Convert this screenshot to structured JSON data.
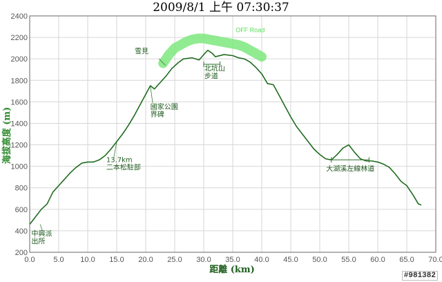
{
  "watermark": "#981382",
  "chart_data": {
    "type": "line",
    "title": "2009/8/1 上午 07:30:37",
    "xlabel": "距離 (km)",
    "ylabel": "海拔高度 (m)",
    "xlim": [
      0,
      70
    ],
    "ylim": [
      200,
      2400
    ],
    "xticks": [
      "0.0",
      "5.0",
      "10.0",
      "15.0",
      "20.0",
      "25.0",
      "30.0",
      "35.0",
      "40.0",
      "45.0",
      "50.0",
      "55.0",
      "60.0",
      "65.0",
      "70.0"
    ],
    "yticks": [
      "200",
      "400",
      "600",
      "800",
      "1000",
      "1200",
      "1400",
      "1600",
      "1800",
      "2000",
      "2200",
      "2400"
    ],
    "grid": true,
    "line_color": "#1e6b1e",
    "series": [
      {
        "points": [
          [
            0,
            460
          ],
          [
            1,
            530
          ],
          [
            2,
            600
          ],
          [
            3,
            650
          ],
          [
            4,
            760
          ],
          [
            5,
            820
          ],
          [
            6,
            880
          ],
          [
            7,
            940
          ],
          [
            8,
            990
          ],
          [
            9,
            1030
          ],
          [
            10,
            1040
          ],
          [
            11,
            1040
          ],
          [
            12,
            1060
          ],
          [
            13,
            1100
          ],
          [
            14,
            1160
          ],
          [
            15,
            1230
          ],
          [
            16,
            1300
          ],
          [
            17,
            1380
          ],
          [
            18,
            1470
          ],
          [
            19,
            1570
          ],
          [
            20,
            1670
          ],
          [
            20.8,
            1750
          ],
          [
            21.5,
            1720
          ],
          [
            22.5,
            1780
          ],
          [
            23.5,
            1840
          ],
          [
            24.5,
            1910
          ],
          [
            25.5,
            1960
          ],
          [
            26.5,
            2000
          ],
          [
            28,
            2010
          ],
          [
            29.2,
            1990
          ],
          [
            30,
            2040
          ],
          [
            30.7,
            2080
          ],
          [
            31.5,
            2050
          ],
          [
            32,
            2020
          ],
          [
            33.5,
            2040
          ],
          [
            35,
            2030
          ],
          [
            36,
            2010
          ],
          [
            37,
            2000
          ],
          [
            38,
            1970
          ],
          [
            39,
            1920
          ],
          [
            40,
            1860
          ],
          [
            41,
            1770
          ],
          [
            42,
            1760
          ],
          [
            43,
            1660
          ],
          [
            44,
            1560
          ],
          [
            45,
            1460
          ],
          [
            46,
            1370
          ],
          [
            47,
            1300
          ],
          [
            48,
            1230
          ],
          [
            49,
            1160
          ],
          [
            50,
            1110
          ],
          [
            51,
            1070
          ],
          [
            52,
            1060
          ],
          [
            53,
            1110
          ],
          [
            54,
            1170
          ],
          [
            55,
            1200
          ],
          [
            56,
            1130
          ],
          [
            57,
            1070
          ],
          [
            58,
            1050
          ],
          [
            59,
            1050
          ],
          [
            60,
            1040
          ],
          [
            61,
            1020
          ],
          [
            62,
            990
          ],
          [
            63,
            930
          ],
          [
            64,
            860
          ],
          [
            65,
            820
          ],
          [
            66,
            740
          ],
          [
            67,
            650
          ],
          [
            67.5,
            640
          ]
        ]
      }
    ],
    "highlight": {
      "label": "OFF Road",
      "color": "#7ee87e",
      "points": [
        [
          23,
          1960
        ],
        [
          24,
          2040
        ],
        [
          25,
          2100
        ],
        [
          26,
          2130
        ],
        [
          27,
          2160
        ],
        [
          28,
          2180
        ],
        [
          29,
          2190
        ],
        [
          30,
          2190
        ],
        [
          31,
          2180
        ],
        [
          32,
          2170
        ],
        [
          33,
          2160
        ],
        [
          34,
          2150
        ],
        [
          35,
          2140
        ],
        [
          36,
          2130
        ],
        [
          37,
          2110
        ],
        [
          38,
          2080
        ],
        [
          39,
          2050
        ],
        [
          40,
          2020
        ]
      ]
    },
    "annotations": [
      {
        "text": "中興派\n出所",
        "x": 0.3,
        "y": 350
      },
      {
        "text": "13.7km\n二本松駐部",
        "x": 13.2,
        "y": 1040
      },
      {
        "text": "國家公園\n界碑",
        "x": 20.8,
        "y": 1530
      },
      {
        "text": "雪見",
        "x": 18.1,
        "y": 2050
      },
      {
        "text": "北坑山\n步道",
        "x": 30.1,
        "y": 1890
      },
      {
        "text": "大湖溪左線林道",
        "x": 51.1,
        "y": 955
      }
    ],
    "brackets": [
      {
        "x1": 30,
        "x2": 32.8,
        "y": 1950
      },
      {
        "x1": 52,
        "x2": 58.5,
        "y": 1060
      }
    ]
  }
}
